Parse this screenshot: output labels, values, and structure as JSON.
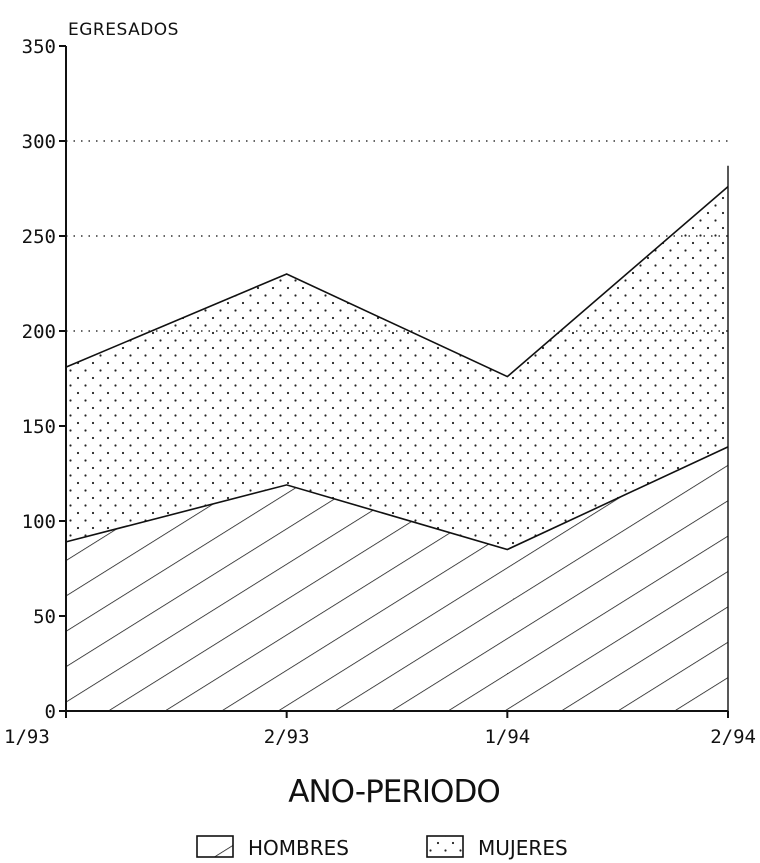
{
  "chart_data": {
    "type": "area",
    "stacked": true,
    "ylabel": "EGRESADOS",
    "xlabel": "ANO-PERIODO",
    "categories": [
      "1/93",
      "2/93",
      "1/94",
      "2/94"
    ],
    "ylim": [
      0,
      350
    ],
    "yticks": [
      0,
      50,
      100,
      150,
      200,
      250,
      300,
      350
    ],
    "grid": "dotted horizontal at 200, 250, 300",
    "series": [
      {
        "name": "HOMBRES",
        "values": [
          89,
          119,
          85,
          139
        ],
        "fill": "diagonal-hatch"
      },
      {
        "name": "MUJERES",
        "values": [
          92,
          111,
          91,
          137
        ],
        "fill": "dotted"
      }
    ],
    "totals": [
      181,
      230,
      176,
      276
    ],
    "legend_position": "bottom-center"
  }
}
